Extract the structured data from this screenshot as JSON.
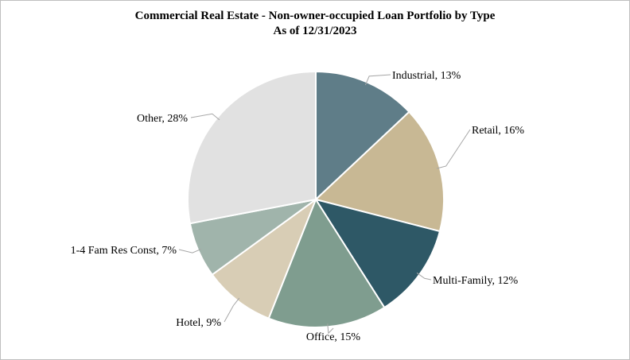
{
  "chart_data": {
    "type": "pie",
    "title": "Commercial Real Estate - Non-owner-occupied Loan Portfolio by Type",
    "subtitle": "As of 12/31/2023",
    "unit": "%",
    "slices": [
      {
        "label": "Industrial",
        "value": 13,
        "display": "Industrial, 13%",
        "color": "#5f7d88"
      },
      {
        "label": "Retail",
        "value": 16,
        "display": "Retail, 16%",
        "color": "#c8b894"
      },
      {
        "label": "Multi-Family",
        "value": 12,
        "display": "Multi-Family, 12%",
        "color": "#2e5866"
      },
      {
        "label": "Office",
        "value": 15,
        "display": "Office, 15%",
        "color": "#7f9d8f"
      },
      {
        "label": "Hotel",
        "value": 9,
        "display": "Hotel, 9%",
        "color": "#d8cdb5"
      },
      {
        "label": "1-4 Fam Res Const",
        "value": 7,
        "display": "1-4 Fam Res Const, 7%",
        "color": "#a0b4ab"
      },
      {
        "label": "Other",
        "value": 28,
        "display": "Other, 28%",
        "color": "#e1e1e1"
      }
    ]
  }
}
